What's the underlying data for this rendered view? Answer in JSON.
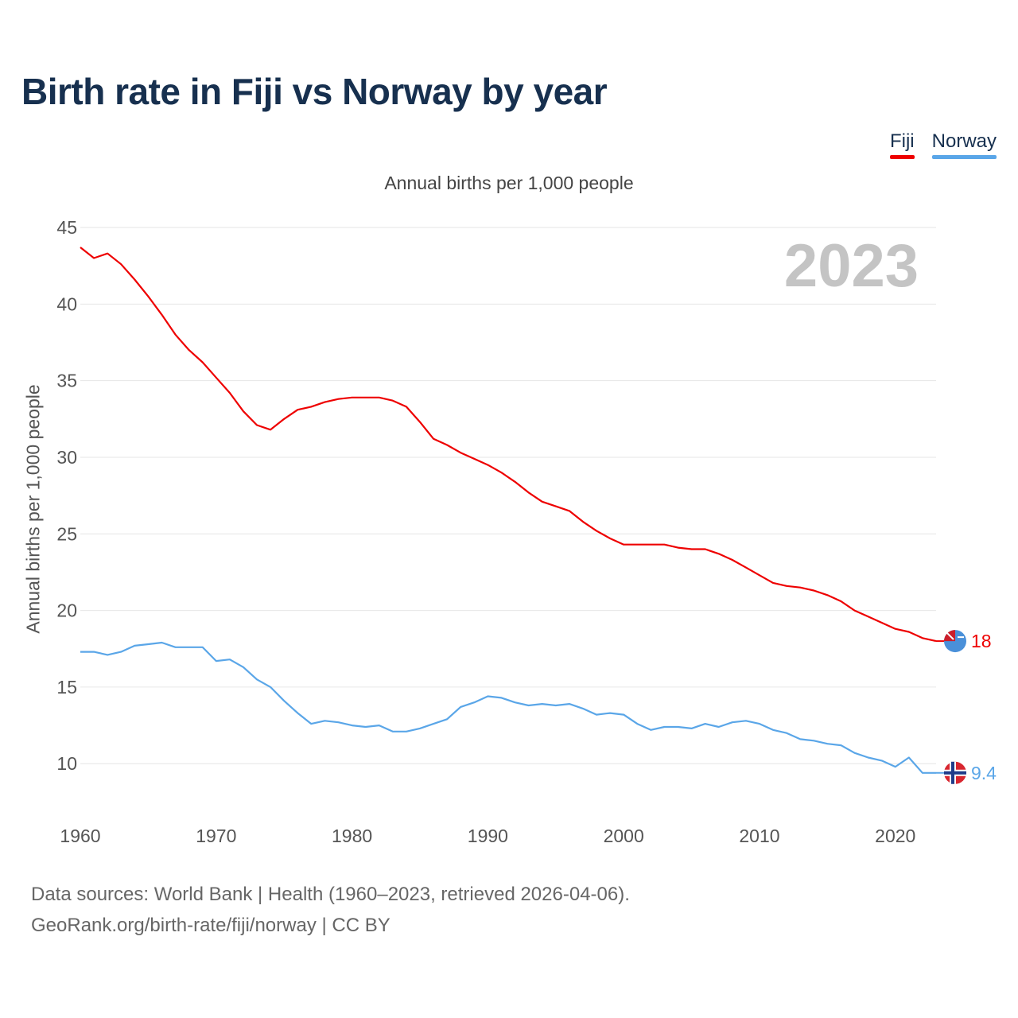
{
  "title": "Birth rate in Fiji vs Norway by year",
  "legend": [
    {
      "name": "Fiji",
      "color": "#ee0000"
    },
    {
      "name": "Norway",
      "color": "#5aa6e8"
    }
  ],
  "footer": {
    "line1": "Data sources: World Bank | Health (1960–2023, retrieved 2026-04-06).",
    "line2": "GeoRank.org/birth-rate/fiji/norway | CC BY"
  },
  "chart_data": {
    "type": "line",
    "title": "Annual births per 1,000 people",
    "ylabel": "Annual births per 1,000 people",
    "xlabel": "",
    "year_label": "2023",
    "xlim": [
      1960,
      2023
    ],
    "ylim": [
      7,
      45
    ],
    "x_ticks": [
      1960,
      1970,
      1980,
      1990,
      2000,
      2010,
      2020
    ],
    "y_ticks": [
      10,
      15,
      20,
      25,
      30,
      35,
      40,
      45
    ],
    "x": [
      1960,
      1961,
      1962,
      1963,
      1964,
      1965,
      1966,
      1967,
      1968,
      1969,
      1970,
      1971,
      1972,
      1973,
      1974,
      1975,
      1976,
      1977,
      1978,
      1979,
      1980,
      1981,
      1982,
      1983,
      1984,
      1985,
      1986,
      1987,
      1988,
      1989,
      1990,
      1991,
      1992,
      1993,
      1994,
      1995,
      1996,
      1997,
      1998,
      1999,
      2000,
      2001,
      2002,
      2003,
      2004,
      2005,
      2006,
      2007,
      2008,
      2009,
      2010,
      2011,
      2012,
      2013,
      2014,
      2015,
      2016,
      2017,
      2018,
      2019,
      2020,
      2021,
      2022,
      2023
    ],
    "series": [
      {
        "name": "Fiji",
        "color": "#ee0000",
        "end_label": "18",
        "values": [
          43.7,
          43.0,
          43.3,
          42.6,
          41.6,
          40.5,
          39.3,
          38.0,
          37.0,
          36.2,
          35.2,
          34.2,
          33.0,
          32.1,
          31.8,
          32.5,
          33.1,
          33.3,
          33.6,
          33.8,
          33.9,
          33.9,
          33.9,
          33.7,
          33.3,
          32.3,
          31.2,
          30.8,
          30.3,
          29.9,
          29.5,
          29.0,
          28.4,
          27.7,
          27.1,
          26.8,
          26.5,
          25.8,
          25.2,
          24.7,
          24.3,
          24.3,
          24.3,
          24.3,
          24.1,
          24.0,
          24.0,
          23.7,
          23.3,
          22.8,
          22.3,
          21.8,
          21.6,
          21.5,
          21.3,
          21.0,
          20.6,
          20.0,
          19.6,
          19.2,
          18.8,
          18.6,
          18.2,
          18.0
        ]
      },
      {
        "name": "Norway",
        "color": "#5aa6e8",
        "end_label": "9.4",
        "values": [
          17.3,
          17.3,
          17.1,
          17.3,
          17.7,
          17.8,
          17.9,
          17.6,
          17.6,
          17.6,
          16.7,
          16.8,
          16.3,
          15.5,
          15.0,
          14.1,
          13.3,
          12.6,
          12.8,
          12.7,
          12.5,
          12.4,
          12.5,
          12.1,
          12.1,
          12.3,
          12.6,
          12.9,
          13.7,
          14.0,
          14.4,
          14.3,
          14.0,
          13.8,
          13.9,
          13.8,
          13.9,
          13.6,
          13.2,
          13.3,
          13.2,
          12.6,
          12.2,
          12.4,
          12.4,
          12.3,
          12.6,
          12.4,
          12.7,
          12.8,
          12.6,
          12.2,
          12.0,
          11.6,
          11.5,
          11.3,
          11.2,
          10.7,
          10.4,
          10.2,
          9.8,
          10.4,
          9.4,
          9.4
        ]
      }
    ]
  }
}
